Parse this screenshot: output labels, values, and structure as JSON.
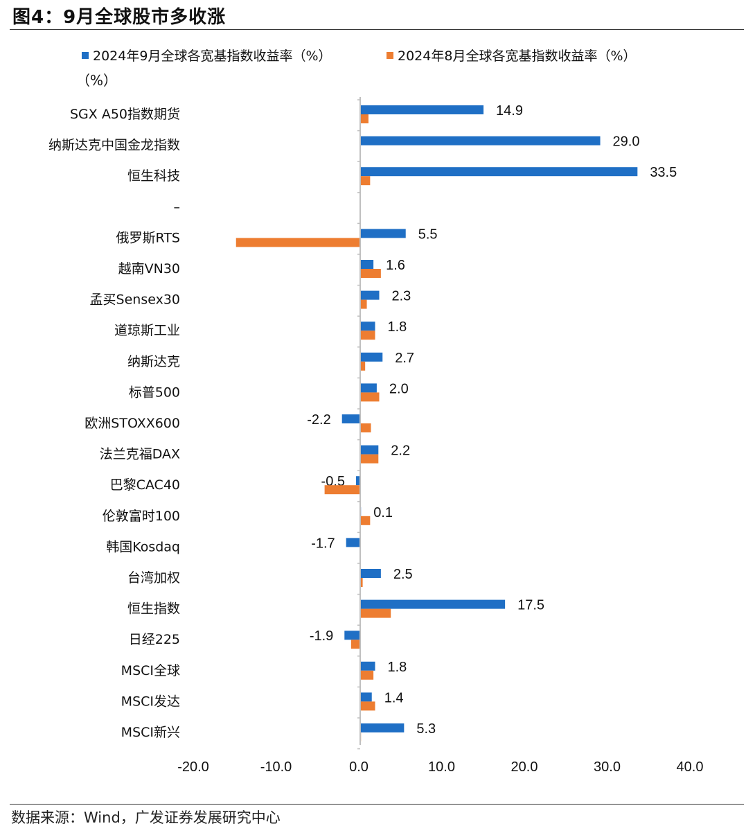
{
  "header": {
    "title": "图4：9月全球股市多收涨"
  },
  "legend": {
    "series1_label": "2024年9月全球各宽基指数收益率（%）",
    "series2_label": "2024年8月全球各宽基指数收益率（%）"
  },
  "unit_label": "（%）",
  "footer": {
    "source": "数据来源：Wind，广发证券发展研究中心"
  },
  "colors": {
    "series1": "#1F6FC5",
    "series2": "#ED7D31",
    "axis": "#BFBFBF"
  },
  "chart_data": {
    "type": "bar",
    "orientation": "horizontal",
    "categories": [
      "SGX A50指数期货",
      "纳斯达克中国金龙指数",
      "恒生科技",
      "–",
      "俄罗斯RTS",
      "越南VN30",
      "孟买Sensex30",
      "道琼斯工业",
      "纳斯达克",
      "标普500",
      "欧洲STOXX600",
      "法兰克福DAX",
      "巴黎CAC40",
      "伦敦富时100",
      "韩国Kosdaq",
      "台湾加权",
      "恒生指数",
      "日经225",
      "MSCI全球",
      "MSCI发达",
      "MSCI新兴"
    ],
    "series": [
      {
        "name": "2024年9月全球各宽基指数收益率（%）",
        "values": [
          14.9,
          29.0,
          33.5,
          null,
          5.5,
          1.6,
          2.3,
          1.8,
          2.7,
          2.0,
          -2.2,
          2.2,
          -0.5,
          0.1,
          -1.7,
          2.5,
          17.5,
          -1.9,
          1.8,
          1.4,
          5.3
        ],
        "labels": [
          "14.9",
          "29.0",
          "33.5",
          "",
          "5.5",
          "1.6",
          "2.3",
          "1.8",
          "2.7",
          "2.0",
          "-2.2",
          "2.2",
          "-0.5",
          "0.1",
          "-1.7",
          "2.5",
          "17.5",
          "-1.9",
          "1.8",
          "1.4",
          "5.3"
        ]
      },
      {
        "name": "2024年8月全球各宽基指数收益率（%）",
        "values": [
          1.0,
          0.0,
          1.2,
          null,
          -15.0,
          2.5,
          0.8,
          1.8,
          0.6,
          2.3,
          1.3,
          2.2,
          -4.3,
          1.2,
          0.0,
          0.3,
          3.7,
          -1.1,
          1.6,
          1.8,
          0.1
        ]
      }
    ],
    "xlim": [
      -20,
      40
    ],
    "xticks": [
      "-20.0",
      "-10.0",
      "0.0",
      "10.0",
      "20.0",
      "30.0",
      "40.0"
    ],
    "xtick_values": [
      -20,
      -10,
      0,
      10,
      20,
      30,
      40
    ],
    "legend_position": "top",
    "grid": false
  }
}
